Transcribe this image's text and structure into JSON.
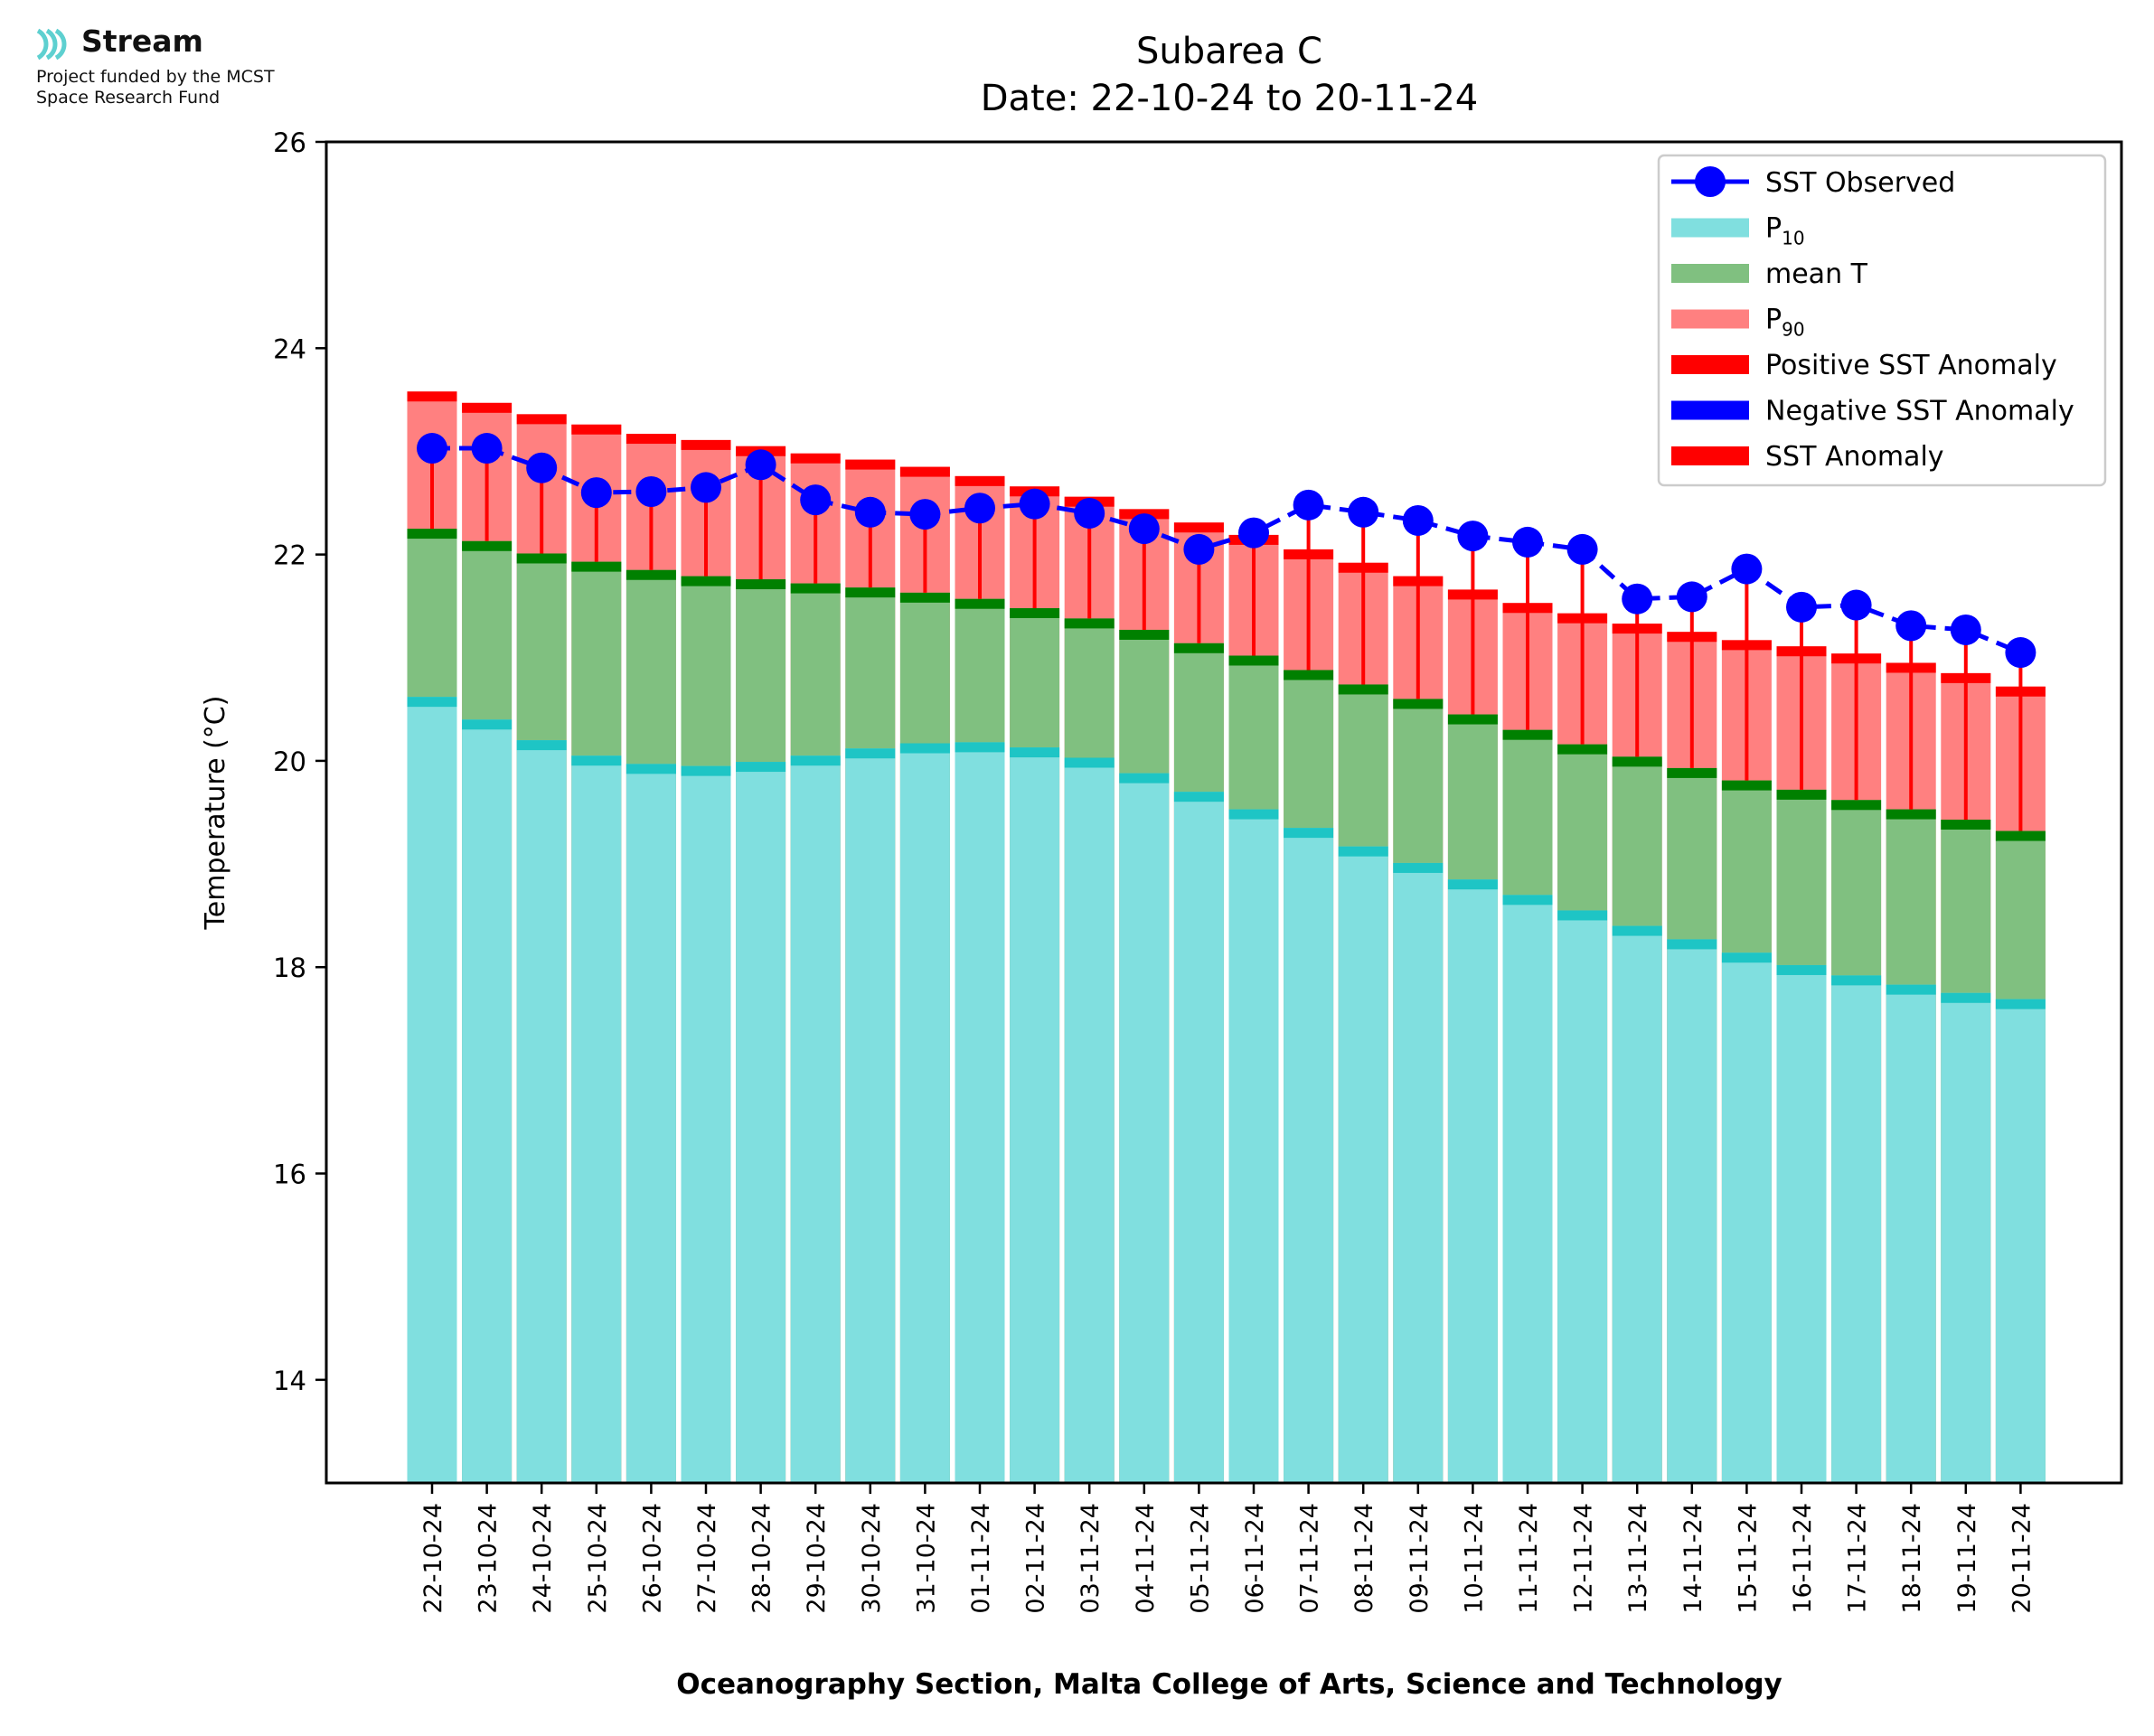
{
  "logo": {
    "name": "Stream",
    "subtitle": "Project funded by the MCST\nSpace Research Fund"
  },
  "chart_data": {
    "type": "bar",
    "title": "Subarea C",
    "subtitle": "Date: 22-10-24 to 20-11-24",
    "xlabel": "Oceanography Section, Malta College of Arts, Science and Technology",
    "ylabel": "Temperature (°C)",
    "ylim": [
      13,
      26
    ],
    "yticks": [
      14,
      16,
      18,
      20,
      22,
      24,
      26
    ],
    "grid": false,
    "legend_position": "top-right",
    "categories": [
      "22-10-24",
      "23-10-24",
      "24-10-24",
      "25-10-24",
      "26-10-24",
      "27-10-24",
      "28-10-24",
      "29-10-24",
      "30-10-24",
      "31-10-24",
      "01-11-24",
      "02-11-24",
      "03-11-24",
      "04-11-24",
      "05-11-24",
      "06-11-24",
      "07-11-24",
      "08-11-24",
      "09-11-24",
      "10-11-24",
      "11-11-24",
      "12-11-24",
      "13-11-24",
      "14-11-24",
      "15-11-24",
      "16-11-24",
      "17-11-24",
      "18-11-24",
      "19-11-24",
      "20-11-24"
    ],
    "series": [
      {
        "name": "P10",
        "values": [
          20.62,
          20.4,
          20.2,
          20.05,
          19.97,
          19.95,
          19.99,
          20.05,
          20.12,
          20.17,
          20.18,
          20.13,
          20.03,
          19.88,
          19.7,
          19.53,
          19.35,
          19.17,
          19.01,
          18.85,
          18.7,
          18.55,
          18.4,
          18.27,
          18.14,
          18.02,
          17.92,
          17.83,
          17.75,
          17.69
        ],
        "color": "#80dfdf",
        "edge_color": "#1ec5c5"
      },
      {
        "name": "mean T",
        "values": [
          22.25,
          22.13,
          22.01,
          21.93,
          21.85,
          21.79,
          21.76,
          21.72,
          21.68,
          21.63,
          21.57,
          21.48,
          21.38,
          21.27,
          21.14,
          21.02,
          20.88,
          20.74,
          20.6,
          20.45,
          20.3,
          20.16,
          20.04,
          19.93,
          19.81,
          19.72,
          19.62,
          19.53,
          19.43,
          19.32
        ],
        "color": "#80c080",
        "edge_color": "#008000"
      },
      {
        "name": "P90",
        "values": [
          23.58,
          23.47,
          23.36,
          23.26,
          23.17,
          23.11,
          23.05,
          22.98,
          22.92,
          22.85,
          22.76,
          22.66,
          22.56,
          22.44,
          22.31,
          22.19,
          22.05,
          21.92,
          21.79,
          21.66,
          21.53,
          21.43,
          21.33,
          21.25,
          21.17,
          21.11,
          21.04,
          20.95,
          20.85,
          20.72
        ],
        "color": "#ff8080",
        "edge_color": "#ff0000"
      },
      {
        "name": "SST Observed",
        "values": [
          23.03,
          23.03,
          22.84,
          22.6,
          22.61,
          22.65,
          22.87,
          22.53,
          22.41,
          22.39,
          22.45,
          22.49,
          22.4,
          22.25,
          22.05,
          22.21,
          22.48,
          22.41,
          22.33,
          22.18,
          22.12,
          22.05,
          21.57,
          21.59,
          21.86,
          21.49,
          21.51,
          21.31,
          21.27,
          21.05
        ],
        "color": "#0000ff",
        "style": "dashed line with circle markers"
      }
    ],
    "anomaly_lines": {
      "from_series": "mean T",
      "to_series": "SST Observed",
      "color": "#ff0000"
    },
    "legend": [
      {
        "label": "SST Observed",
        "kind": "line-marker",
        "color": "#0000ff"
      },
      {
        "label": "P",
        "sub": "10",
        "kind": "patch",
        "color": "#80dfdf"
      },
      {
        "label": "mean T",
        "kind": "patch",
        "color": "#80c080"
      },
      {
        "label": "P",
        "sub": "90",
        "kind": "patch",
        "color": "#ff8080"
      },
      {
        "label": "Positive SST Anomaly",
        "kind": "patch",
        "color": "#ff0000"
      },
      {
        "label": "Negative SST Anomaly",
        "kind": "patch",
        "color": "#0000ff"
      },
      {
        "label": "SST Anomaly",
        "kind": "patch",
        "color": "#ff0000"
      }
    ]
  }
}
